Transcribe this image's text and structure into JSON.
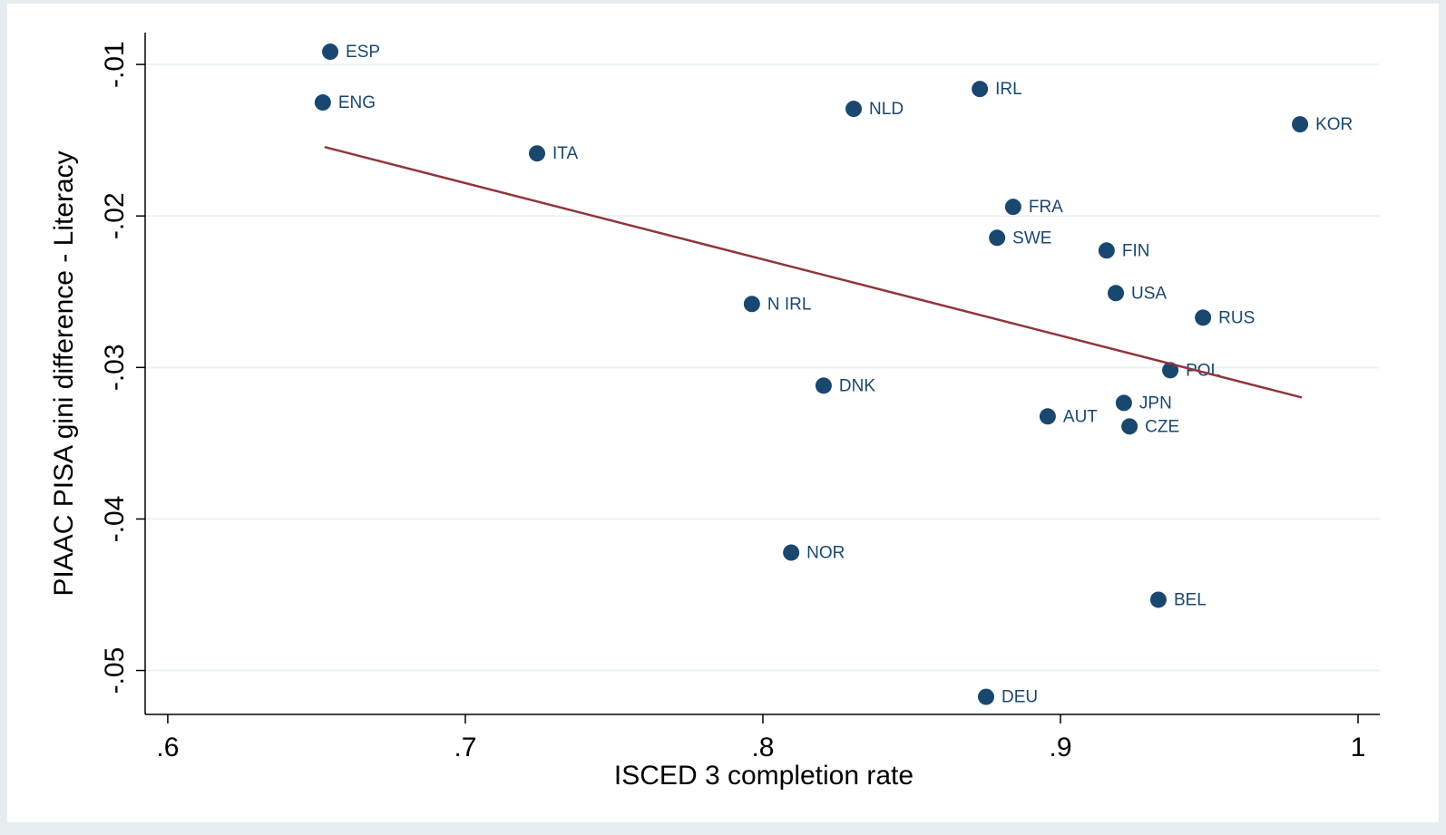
{
  "chart_data": {
    "type": "scatter",
    "x_label": "ISCED 3 completion rate",
    "y_label": "PIAAC PISA gini difference - Literacy",
    "series": [
      {
        "color": "#1a476f",
        "labels": [
          "ESP",
          "ENG",
          "ITA",
          "NLD",
          "IRL",
          "KOR",
          "FRA",
          "SWE",
          "FIN",
          "USA",
          "N IRL",
          "RUS",
          "POL",
          "DNK",
          "JPN",
          "AUT",
          "CZE",
          "NOR",
          "BEL",
          "DEU"
        ],
        "x": [
          0.6546,
          0.6521,
          0.7241,
          0.8305,
          0.8729,
          0.9805,
          0.8841,
          0.8787,
          0.9155,
          0.9186,
          0.7963,
          0.9479,
          0.9369,
          0.8204,
          0.9213,
          0.8957,
          0.9232,
          0.8095,
          0.9329,
          0.875
        ],
        "values": [
          -0.00916,
          -0.01251,
          -0.01587,
          -0.01293,
          -0.01162,
          -0.01395,
          -0.0194,
          -0.02144,
          -0.02228,
          -0.02509,
          -0.02581,
          -0.02671,
          -0.03018,
          -0.0312,
          -0.03234,
          -0.03323,
          -0.03389,
          -0.04222,
          -0.04533,
          -0.05174
        ]
      }
    ],
    "fit_line": {
      "color": "#90353b",
      "x": [
        0.6527,
        0.9811
      ],
      "values": [
        -0.01545,
        -0.03198
      ]
    },
    "xlim": [
      0.5924,
      1.0073
    ],
    "ylim": [
      -0.0529,
      -0.0079
    ],
    "xticks": [
      {
        "value": 0.6,
        "label": ".6"
      },
      {
        "value": 0.7,
        "label": ".7"
      },
      {
        "value": 0.8,
        "label": ".8"
      },
      {
        "value": 0.9,
        "label": ".9"
      },
      1
    ],
    "yticks": [
      {
        "value": -0.01,
        "label": "-.01"
      },
      {
        "value": -0.02,
        "label": "-.02"
      },
      {
        "value": -0.03,
        "label": "-.03"
      },
      {
        "value": -0.04,
        "label": "-.04"
      },
      {
        "value": -0.05,
        "label": "-.05"
      }
    ],
    "grid": true
  }
}
